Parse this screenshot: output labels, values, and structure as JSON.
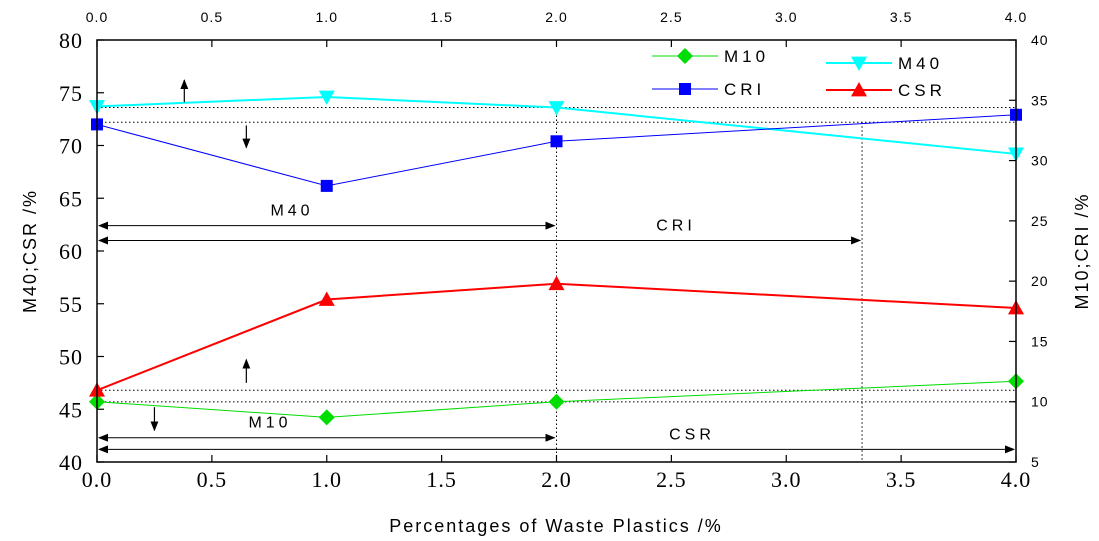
{
  "chart_data": {
    "type": "line",
    "xlabel": "Percentages of Waste Plastics /%",
    "ylabel_left": "M40;CSR /%",
    "ylabel_right": "M10;CRI /%",
    "xlim": [
      0,
      4
    ],
    "ylim_left": [
      40,
      80
    ],
    "ylim_right": [
      5,
      40
    ],
    "x_ticks_bottom": [
      "0.0",
      "0.5",
      "1.0",
      "1.5",
      "2.0",
      "2.5",
      "3.0",
      "3.5",
      "4.0"
    ],
    "x_ticks_top": [
      "0.0",
      "0.5",
      "1.0",
      "1.5",
      "2.0",
      "2.5",
      "3.0",
      "3.5",
      "4.0"
    ],
    "y_ticks_left": [
      "40",
      "45",
      "50",
      "55",
      "60",
      "65",
      "70",
      "75",
      "80"
    ],
    "y_ticks_right": [
      "5",
      "10",
      "15",
      "20",
      "25",
      "30",
      "35",
      "40"
    ],
    "x": [
      0,
      1,
      2,
      4
    ],
    "series": [
      {
        "name": "M10",
        "axis": "right",
        "color": "#00dd00",
        "marker": "diamond",
        "values": [
          10.0,
          8.7,
          10.0,
          11.7
        ]
      },
      {
        "name": "M40",
        "axis": "left",
        "color": "#00ffff",
        "marker": "triangle-down",
        "values": [
          73.7,
          74.6,
          73.6,
          69.2
        ]
      },
      {
        "name": "CRI",
        "axis": "right",
        "color": "#0000ff",
        "marker": "square",
        "values": [
          33.0,
          27.9,
          31.6,
          33.8
        ]
      },
      {
        "name": "CSR",
        "axis": "left",
        "color": "#ff0000",
        "marker": "triangle-up",
        "values": [
          46.8,
          55.4,
          56.9,
          54.6
        ]
      }
    ],
    "legend_position": "top-right",
    "annotations": [
      {
        "label": "M40",
        "axis": "left",
        "from": 0,
        "to": 2,
        "y": 62.4
      },
      {
        "label": "CRI",
        "axis": "left",
        "from": 0,
        "to": 3.33,
        "y": 61.0
      },
      {
        "label": "M10",
        "axis": "left",
        "from": 0,
        "to": 2,
        "y": 42.3
      },
      {
        "label": "CSR",
        "axis": "left",
        "from": 0,
        "to": 4,
        "y": 41.2
      }
    ],
    "reference_lines": {
      "horizontal_left": [
        73.6,
        72.2,
        46.8,
        45.7
      ],
      "vertical_x": [
        2,
        3.33
      ]
    },
    "arrows": [
      {
        "direction": "up",
        "x": 0.38,
        "y_from": 74.1,
        "y_to": 76.2
      },
      {
        "direction": "down",
        "x": 0.65,
        "y_from": 71.9,
        "y_to": 69.8
      },
      {
        "direction": "up",
        "x": 0.65,
        "y_from": 47.5,
        "y_to": 49.7
      },
      {
        "direction": "down",
        "x": 0.25,
        "y_from": 45.2,
        "y_to": 43.0
      }
    ]
  }
}
